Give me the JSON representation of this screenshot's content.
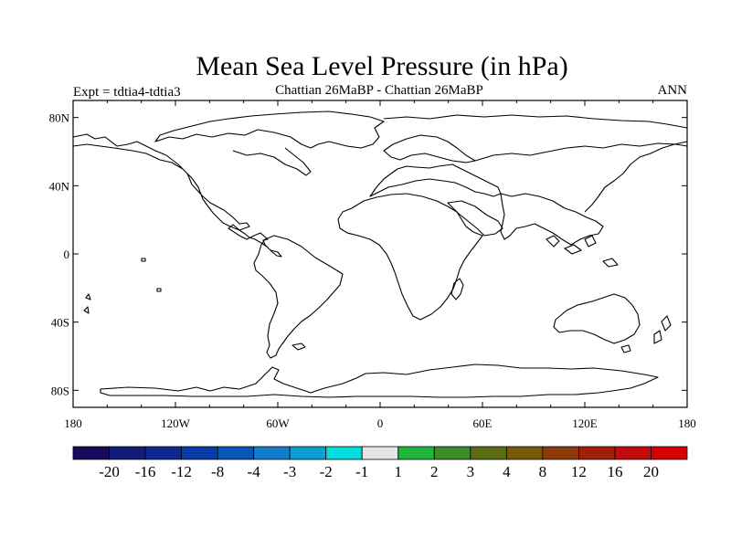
{
  "title": "Mean Sea Level Pressure (in hPa)",
  "left_label": "Expt = tdtia4-tdtia3",
  "center_label": "Chattian  26MaBP - Chattian  26MaBP",
  "right_label": "ANN",
  "map": {
    "projection": "cylindrical equidistant",
    "lon_range": [
      -180,
      180
    ],
    "lat_range": [
      -90,
      90
    ],
    "lat_ticks": [
      {
        "value": 80,
        "label": "80N"
      },
      {
        "value": 40,
        "label": "40N"
      },
      {
        "value": 0,
        "label": "0"
      },
      {
        "value": -40,
        "label": "40S"
      },
      {
        "value": -80,
        "label": "80S"
      }
    ],
    "lon_ticks": [
      {
        "value": -180,
        "label": "180"
      },
      {
        "value": -120,
        "label": "120W"
      },
      {
        "value": -60,
        "label": "60W"
      },
      {
        "value": 0,
        "label": "0"
      },
      {
        "value": 60,
        "label": "60E"
      },
      {
        "value": 120,
        "label": "120E"
      },
      {
        "value": 180,
        "label": "180"
      }
    ]
  },
  "colorbar": {
    "labels": [
      "-20",
      "-16",
      "-12",
      "-8",
      "-4",
      "-3",
      "-2",
      "-1",
      "1",
      "2",
      "3",
      "4",
      "8",
      "12",
      "16",
      "20"
    ],
    "colors": [
      "#1a0a5c",
      "#141a78",
      "#0d2990",
      "#0a3ca8",
      "#0a55b8",
      "#127cc8",
      "#0aa0d2",
      "#05dcdc",
      "#e6e6e6",
      "#1fb43c",
      "#3c8c28",
      "#5a6e14",
      "#785a0a",
      "#8c3c0a",
      "#a01e0a",
      "#c30a0a",
      "#d70000"
    ]
  },
  "field": {
    "name": "Mean Sea Level Pressure difference",
    "units": "hPa",
    "note": "difference field is zero everywhere; no contours drawn"
  }
}
